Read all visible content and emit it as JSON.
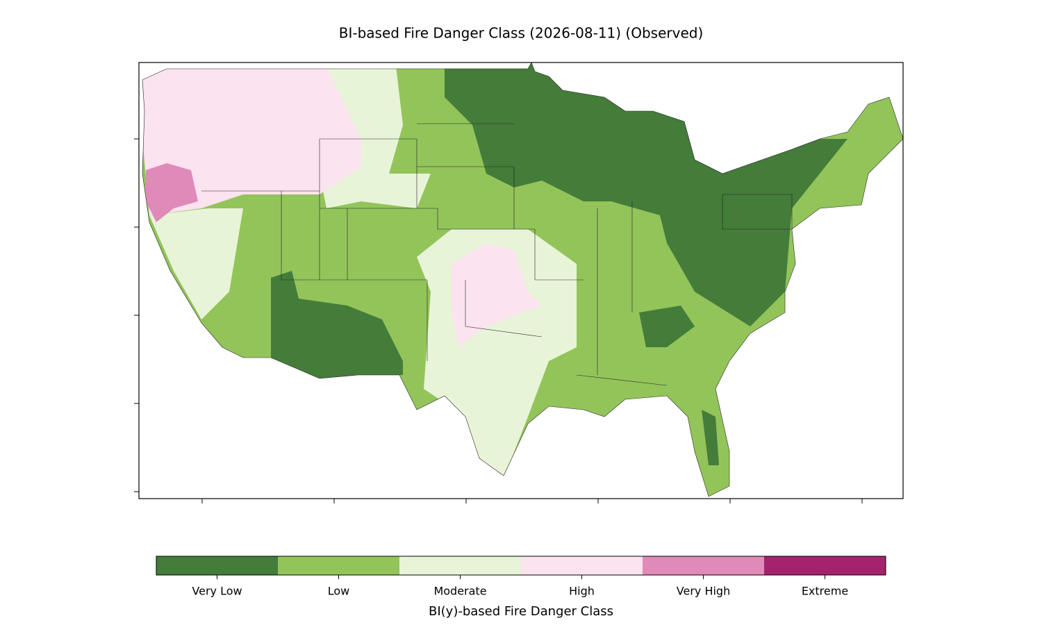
{
  "title": "BI-based Fire Danger Class (2026-08-11) (Observed)",
  "colorbar": {
    "label": "BI(y)-based Fire Danger Class",
    "classes": [
      {
        "label": "Very Low",
        "color": "#447c3a"
      },
      {
        "label": "Low",
        "color": "#93c45a"
      },
      {
        "label": "Moderate",
        "color": "#e8f4d8"
      },
      {
        "label": "High",
        "color": "#fbe3f0"
      },
      {
        "label": "Very High",
        "color": "#e08ab9"
      },
      {
        "label": "Extreme",
        "color": "#a3236d"
      }
    ]
  }
}
